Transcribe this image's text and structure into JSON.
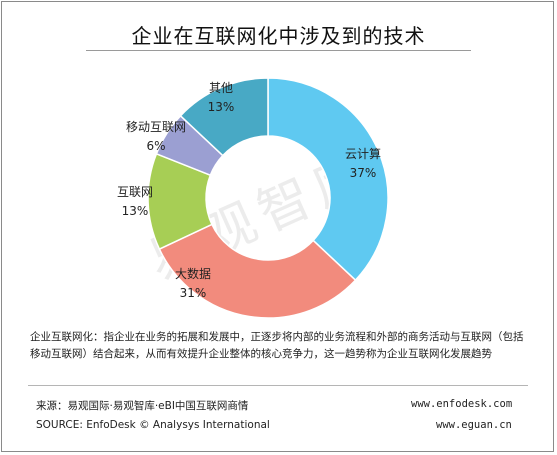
{
  "header": {
    "title": "企业在互联网化中涉及到的技术"
  },
  "watermark": {
    "text": "易观智库"
  },
  "chart_data": {
    "type": "pie",
    "title": "企业在互联网化中涉及到的技术",
    "unit": "%",
    "slices": [
      {
        "label": "云计算",
        "value": 37,
        "display": "37%",
        "color": "#5fc9f1"
      },
      {
        "label": "大数据",
        "value": 31,
        "display": "31%",
        "color": "#f28b7d"
      },
      {
        "label": "互联网",
        "value": 13,
        "display": "13%",
        "color": "#a7ce55"
      },
      {
        "label": "移动互联网",
        "value": 6,
        "display": "6%",
        "color": "#9b9fd2"
      },
      {
        "label": "其他",
        "value": 13,
        "display": "13%",
        "color": "#48a9c5"
      }
    ]
  },
  "note": {
    "text": "企业互联网化：指企业在业务的拓展和发展中，正逐步将内部的业务流程和外部的商务活动与互联网（包括移动互联网）结合起来，从而有效提升企业整体的核心竞争力，这一趋势称为企业互联网化发展趋势"
  },
  "footer": {
    "source_cn": "来源：易观国际·易观智库·eBI中国互联网商情",
    "source_en": "SOURCE: EnfoDesk © Analysys International",
    "url1": "www.enfodesk.com",
    "url2": "www.eguan.cn"
  }
}
